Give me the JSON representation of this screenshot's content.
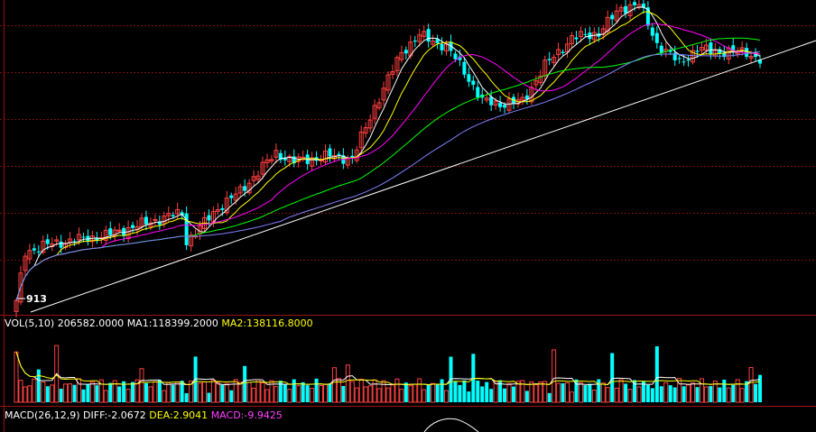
{
  "colors": {
    "background": "#000000",
    "grid": "#7a1010",
    "frame": "#a01010",
    "up_candle": "#ff4040",
    "down_candle": "#00ffff",
    "ma_white": "#ffffff",
    "ma_yellow": "#ffff00",
    "ma_magenta": "#ff00ff",
    "ma_green": "#00ff00",
    "ma_blue": "#8080ff",
    "trendline": "#ffffff"
  },
  "price_panel": {
    "low_marker": "913"
  },
  "volume_panel": {
    "label_name": "VOL(5,10)",
    "value": "206582.0000",
    "ma1_text": "MA1:118399.2000",
    "ma2_text": "MA2:138116.8000"
  },
  "macd_panel": {
    "label_name": "MACD(26,12,9)",
    "diff_text": "DIFF:-2.0672",
    "dea_text": "DEA:2.9041",
    "macd_text": "MACD:-9.9425"
  },
  "chart_data": {
    "type": "candlestick",
    "price_min": 880,
    "price_max": 2020,
    "volume_max": 450000,
    "volume_last": 206582,
    "volume_ma1_last": 118399.2,
    "volume_ma2_last": 138116.8,
    "macd_last": {
      "diff": -2.0672,
      "dea": 2.9041,
      "macd": -9.9425
    },
    "grid": true
  }
}
